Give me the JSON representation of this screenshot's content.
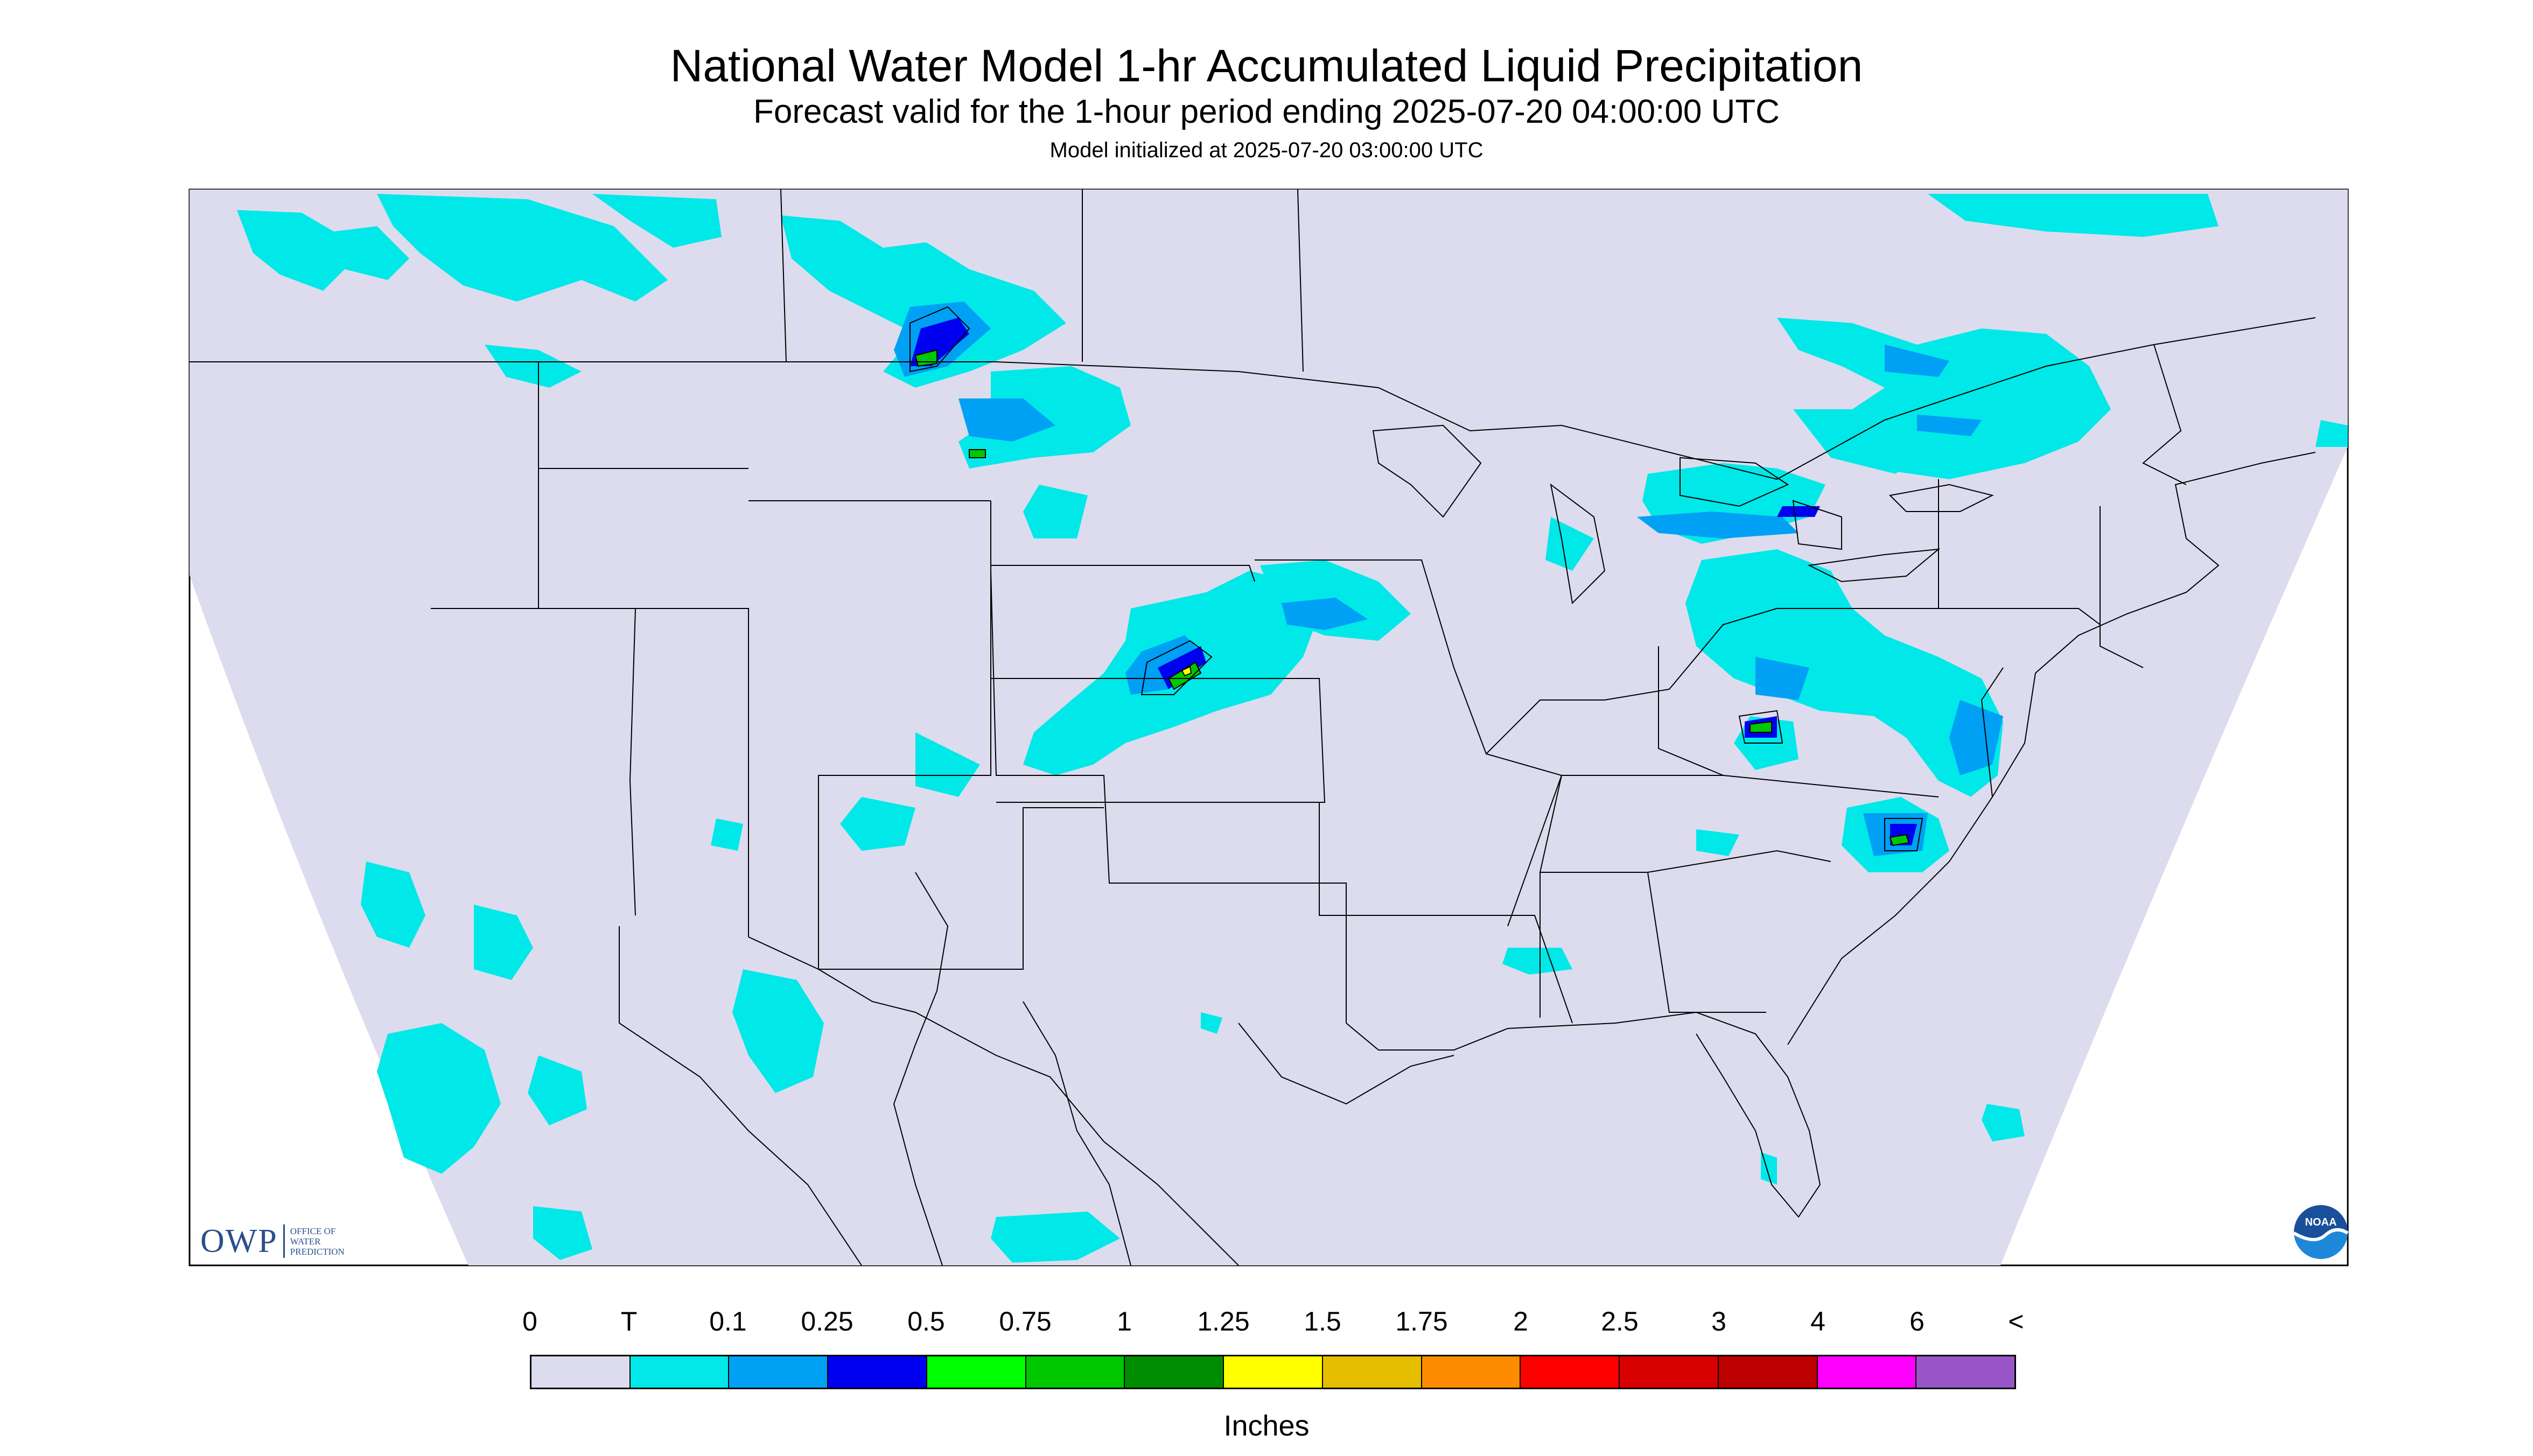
{
  "title": "National Water Model 1-hr Accumulated Liquid Precipitation",
  "subtitle": "Forecast valid for the 1-hour period ending 2025-07-20 04:00:00 UTC",
  "init_line": "Model initialized at 2025-07-20 03:00:00 UTC",
  "map": {
    "region": "Contiguous United States",
    "background_color": "#dcdcee",
    "boundary_color": "#000000"
  },
  "logos": {
    "owp": {
      "letters": "OWP",
      "lines": [
        "OFFICE OF",
        "WATER",
        "PREDICTION"
      ],
      "icon": "owp-logo"
    },
    "noaa": {
      "text": "NOAA",
      "icon": "noaa-logo"
    }
  },
  "legend": {
    "units": "Inches",
    "labels": [
      "0",
      "T",
      "0.1",
      "0.25",
      "0.5",
      "0.75",
      "1",
      "1.25",
      "1.5",
      "1.75",
      "2",
      "2.5",
      "3",
      "4",
      "6",
      "<"
    ],
    "colors": [
      "#dcdcee",
      "#00e8e8",
      "#00a0f4",
      "#0000f0",
      "#00ff00",
      "#00c800",
      "#008c00",
      "#ffff00",
      "#e6be00",
      "#ff8c00",
      "#ff0000",
      "#d60000",
      "#bc0000",
      "#ff00ff",
      "#9955c8"
    ]
  }
}
